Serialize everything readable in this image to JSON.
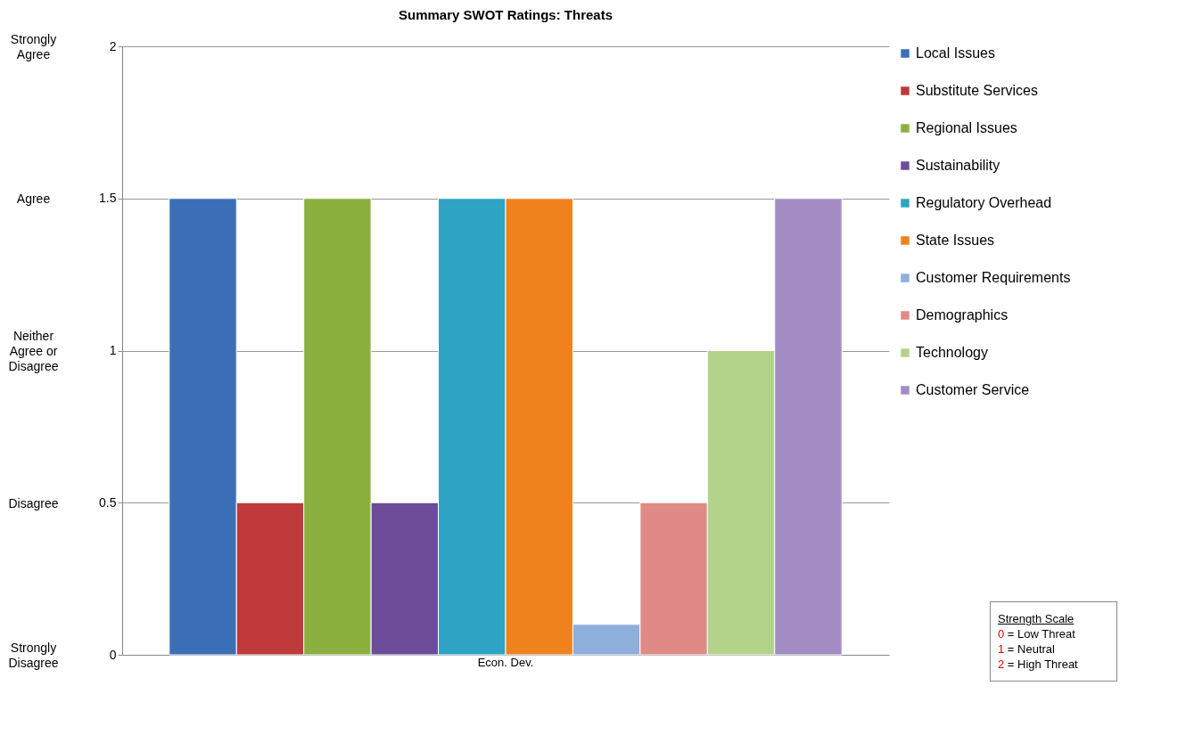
{
  "chart_data": {
    "type": "bar",
    "title": "Summary SWOT Ratings:  Threats",
    "categories": [
      "Econ. Dev."
    ],
    "series": [
      {
        "name": "Local Issues",
        "color": "#3a6fb8",
        "values": [
          1.5
        ]
      },
      {
        "name": "Substitute Services",
        "color": "#c0393b",
        "values": [
          0.5
        ]
      },
      {
        "name": "Regional Issues",
        "color": "#8cb03e",
        "values": [
          1.5
        ]
      },
      {
        "name": "Sustainability",
        "color": "#6d4c9a",
        "values": [
          0.5
        ]
      },
      {
        "name": "Regulatory Overhead",
        "color": "#2ea3c4",
        "values": [
          1.5
        ]
      },
      {
        "name": "State Issues",
        "color": "#f0821e",
        "values": [
          1.5
        ]
      },
      {
        "name": "Customer Requirements",
        "color": "#8eaedc",
        "values": [
          0.1
        ]
      },
      {
        "name": "Demographics",
        "color": "#e08a86",
        "values": [
          0.5
        ]
      },
      {
        "name": "Technology",
        "color": "#b4d38a",
        "values": [
          1.0
        ]
      },
      {
        "name": "Customer Service",
        "color": "#a38cc4",
        "values": [
          1.5
        ]
      }
    ],
    "ylim": [
      0,
      2
    ],
    "yticks": [
      0,
      0.5,
      1,
      1.5,
      2
    ],
    "grid": "y",
    "legend": "right",
    "annotations": [
      "Strongly Agree",
      "Agree",
      "Neither Agree or Disagree",
      "Disagree",
      "Strongly Disagree",
      "Strength Scale",
      "0 = Low Threat",
      "1 = Neutral",
      "2 = High Threat"
    ]
  }
}
